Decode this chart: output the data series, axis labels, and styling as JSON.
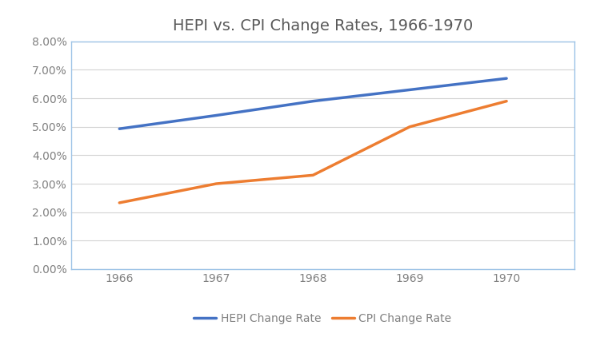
{
  "title": "HEPI vs. CPI Change Rates, 1966-1970",
  "years": [
    1966,
    1967,
    1968,
    1969,
    1970
  ],
  "hepi": [
    0.0493,
    0.054,
    0.059,
    0.063,
    0.067
  ],
  "cpi": [
    0.0233,
    0.03,
    0.033,
    0.05,
    0.059
  ],
  "hepi_label": "HEPI Change Rate",
  "cpi_label": "CPI Change Rate",
  "hepi_color": "#4472C4",
  "cpi_color": "#ED7D31",
  "ylim": [
    0.0,
    0.08
  ],
  "yticks": [
    0.0,
    0.01,
    0.02,
    0.03,
    0.04,
    0.05,
    0.06,
    0.07,
    0.08
  ],
  "background_color": "#FFFFFF",
  "plot_bg_color": "#FFFFFF",
  "border_color": "#9DC3E6",
  "grid_color": "#D3D3D3",
  "title_fontsize": 14,
  "legend_fontsize": 10,
  "tick_fontsize": 10,
  "tick_color": "#808080",
  "title_color": "#595959",
  "line_width": 2.5,
  "xlim_left": 1965.5,
  "xlim_right": 1970.7
}
